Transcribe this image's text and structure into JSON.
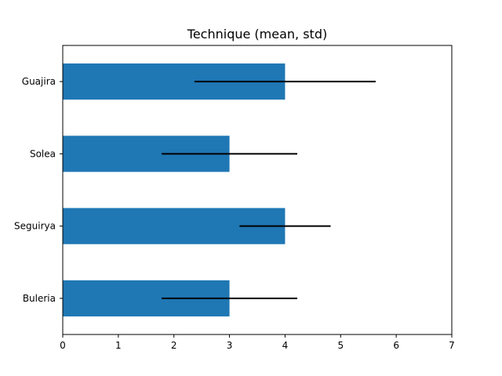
{
  "chart_data": {
    "type": "bar",
    "orientation": "horizontal",
    "title": "Technique (mean, std)",
    "xlabel": "",
    "ylabel": "",
    "categories": [
      "Buleria",
      "Seguirya",
      "Solea",
      "Guajira"
    ],
    "series": [
      {
        "values": [
          3,
          4,
          3,
          4
        ],
        "error": [
          1.22,
          0.82,
          1.22,
          1.63
        ],
        "color": "#1f77b4",
        "error_color": "#000000"
      }
    ],
    "xlim": [
      0,
      7
    ],
    "xticks": [
      0,
      1,
      2,
      3,
      4,
      5,
      6,
      7
    ],
    "grid": false,
    "legend": "none"
  }
}
